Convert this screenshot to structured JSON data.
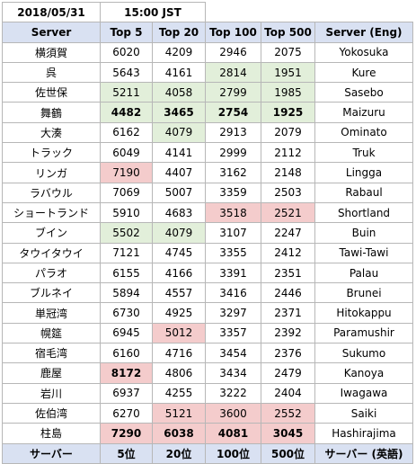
{
  "date": "2018/05/31",
  "time": "15:00 JST",
  "headers": [
    "Server",
    "Top 5",
    "Top 20",
    "Top 100",
    "Top 500",
    "Server (Eng)"
  ],
  "footer": [
    "サーバー",
    "5位",
    "20位",
    "100位",
    "500位",
    "サーバー (英語)"
  ],
  "highlight_colors": {
    "green": "#e2efda",
    "red": "#f4cccc",
    "header": "#d9e1f2"
  },
  "rows": [
    {
      "server": "横須賀",
      "top5": "6020",
      "top20": "4209",
      "top100": "2946",
      "top500": "2075",
      "eng": "Yokosuka"
    },
    {
      "server": "呉",
      "top5": "5643",
      "top20": "4161",
      "top100": "2814",
      "top500": "1951",
      "eng": "Kure"
    },
    {
      "server": "佐世保",
      "top5": "5211",
      "top20": "4058",
      "top100": "2799",
      "top500": "1985",
      "eng": "Sasebo"
    },
    {
      "server": "舞鶴",
      "top5": "4482",
      "top20": "3465",
      "top100": "2754",
      "top500": "1925",
      "eng": "Maizuru"
    },
    {
      "server": "大湊",
      "top5": "6162",
      "top20": "4079",
      "top100": "2913",
      "top500": "2079",
      "eng": "Ominato"
    },
    {
      "server": "トラック",
      "top5": "6049",
      "top20": "4141",
      "top100": "2999",
      "top500": "2112",
      "eng": "Truk"
    },
    {
      "server": "リンガ",
      "top5": "7190",
      "top20": "4407",
      "top100": "3162",
      "top500": "2148",
      "eng": "Lingga"
    },
    {
      "server": "ラバウル",
      "top5": "7069",
      "top20": "5007",
      "top100": "3359",
      "top500": "2503",
      "eng": "Rabaul"
    },
    {
      "server": "ショートランド",
      "top5": "5910",
      "top20": "4683",
      "top100": "3518",
      "top500": "2521",
      "eng": "Shortland"
    },
    {
      "server": "ブイン",
      "top5": "5502",
      "top20": "4079",
      "top100": "3107",
      "top500": "2247",
      "eng": "Buin"
    },
    {
      "server": "タウイタウイ",
      "top5": "7121",
      "top20": "4745",
      "top100": "3355",
      "top500": "2412",
      "eng": "Tawi-Tawi"
    },
    {
      "server": "パラオ",
      "top5": "6155",
      "top20": "4166",
      "top100": "3391",
      "top500": "2351",
      "eng": "Palau"
    },
    {
      "server": "ブルネイ",
      "top5": "5894",
      "top20": "4557",
      "top100": "3416",
      "top500": "2446",
      "eng": "Brunei"
    },
    {
      "server": "単冠湾",
      "top5": "6730",
      "top20": "4925",
      "top100": "3297",
      "top500": "2371",
      "eng": "Hitokappu"
    },
    {
      "server": "幌筵",
      "top5": "6945",
      "top20": "5012",
      "top100": "3357",
      "top500": "2392",
      "eng": "Paramushir"
    },
    {
      "server": "宿毛湾",
      "top5": "6160",
      "top20": "4716",
      "top100": "3454",
      "top500": "2376",
      "eng": "Sukumo"
    },
    {
      "server": "鹿屋",
      "top5": "8172",
      "top20": "4806",
      "top100": "3434",
      "top500": "2479",
      "eng": "Kanoya"
    },
    {
      "server": "岩川",
      "top5": "6937",
      "top20": "4255",
      "top100": "3222",
      "top500": "2404",
      "eng": "Iwagawa"
    },
    {
      "server": "佐伯湾",
      "top5": "6270",
      "top20": "5121",
      "top100": "3600",
      "top500": "2552",
      "eng": "Saiki"
    },
    {
      "server": "柱島",
      "top5": "7290",
      "top20": "6038",
      "top100": "4081",
      "top500": "3045",
      "eng": "Hashirajima"
    }
  ]
}
